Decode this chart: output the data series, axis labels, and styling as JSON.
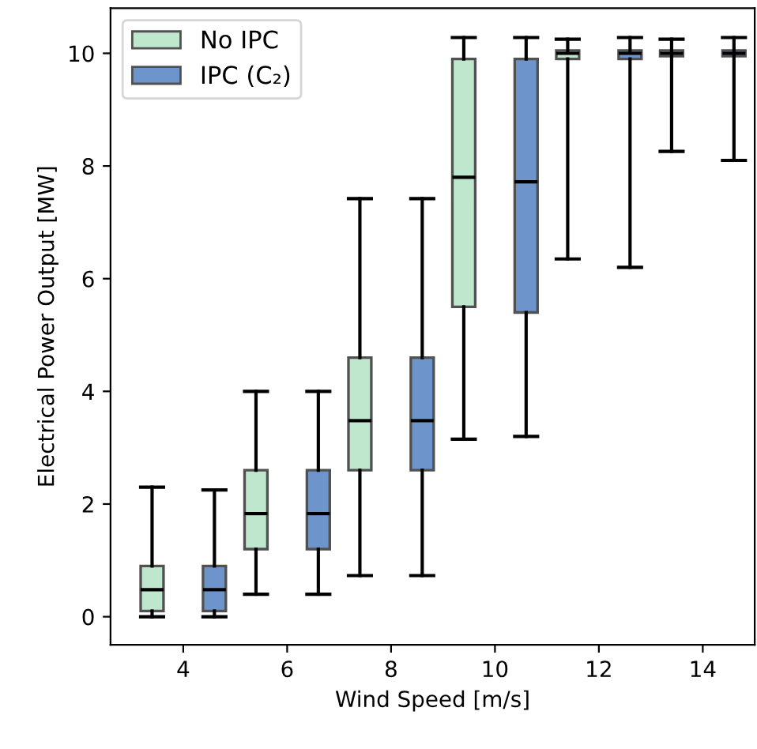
{
  "chart_data": {
    "type": "box",
    "xlabel": "Wind Speed [m/s]",
    "ylabel": "Electrical Power Output [MW]",
    "categories": [
      "4",
      "6",
      "8",
      "10",
      "12",
      "14"
    ],
    "ylim": [
      -0.5,
      10.8
    ],
    "yticks": [
      0,
      2,
      4,
      6,
      8,
      10
    ],
    "legend": "top left",
    "series": [
      {
        "name": "No IPC",
        "color": "#b3e3c5",
        "boxes": [
          {
            "low": 0,
            "q1": 0.1,
            "median": 0.48,
            "q3": 0.9,
            "high": 2.3
          },
          {
            "low": 0.4,
            "q1": 1.2,
            "median": 1.83,
            "q3": 2.6,
            "high": 4.0
          },
          {
            "low": 0.73,
            "q1": 2.6,
            "median": 3.48,
            "q3": 4.6,
            "high": 7.42
          },
          {
            "low": 3.15,
            "q1": 5.5,
            "median": 7.8,
            "q3": 9.9,
            "high": 10.28
          },
          {
            "low": 6.35,
            "q1": 9.9,
            "median": 10.0,
            "q3": 10.05,
            "high": 10.25
          },
          {
            "low": 8.26,
            "q1": 9.95,
            "median": 10.0,
            "q3": 10.05,
            "high": 10.25
          }
        ]
      },
      {
        "name": "IPC (C₂)",
        "color": "#5583c2",
        "boxes": [
          {
            "low": 0,
            "q1": 0.1,
            "median": 0.48,
            "q3": 0.9,
            "high": 2.25
          },
          {
            "low": 0.4,
            "q1": 1.2,
            "median": 1.83,
            "q3": 2.6,
            "high": 4.0
          },
          {
            "low": 0.73,
            "q1": 2.6,
            "median": 3.48,
            "q3": 4.6,
            "high": 7.42
          },
          {
            "low": 3.2,
            "q1": 5.4,
            "median": 7.72,
            "q3": 9.9,
            "high": 10.28
          },
          {
            "low": 6.2,
            "q1": 9.9,
            "median": 10.0,
            "q3": 10.05,
            "high": 10.28
          },
          {
            "low": 8.1,
            "q1": 9.95,
            "median": 10.0,
            "q3": 10.05,
            "high": 10.28
          }
        ]
      }
    ]
  }
}
